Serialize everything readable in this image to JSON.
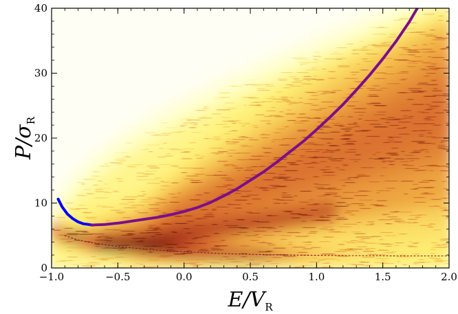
{
  "chart_data": {
    "type": "heatmap",
    "title": "",
    "xlabel": "E/V",
    "xlabel_subscript": "R",
    "ylabel": "P/σ",
    "ylabel_subscript": "R",
    "xlim": [
      -1.0,
      2.0
    ],
    "ylim": [
      0,
      40
    ],
    "x_ticks": [
      -1.0,
      -0.5,
      0.0,
      0.5,
      1.0,
      1.5,
      2.0
    ],
    "x_tick_labels": [
      "−1.0",
      "−0.5",
      "0.0",
      "0.5",
      "1.0",
      "1.5",
      "2.0"
    ],
    "y_ticks": [
      0,
      10,
      20,
      30,
      40
    ],
    "y_tick_labels": [
      "0",
      "10",
      "20",
      "30",
      "40"
    ],
    "grid": false,
    "colormap": [
      "#fffef4",
      "#ffffc4",
      "#fff070",
      "#f2b140",
      "#d86a28",
      "#a52a14",
      "#5a0e08"
    ],
    "series": [
      {
        "style": "solid",
        "color": "#0000ff",
        "x": [
          -0.95,
          -0.92,
          -0.88,
          -0.84,
          -0.8,
          -0.76,
          -0.72,
          -0.69
        ],
        "y": [
          10.6,
          9.4,
          8.3,
          7.6,
          7.1,
          6.8,
          6.7,
          6.6
        ]
      },
      {
        "style": "solid",
        "color": "#7b0f8a",
        "x": [
          -0.7,
          -0.6,
          -0.5,
          -0.4,
          -0.3,
          -0.2,
          -0.1,
          0.0,
          0.1,
          0.2,
          0.3,
          0.4,
          0.5,
          0.6,
          0.7,
          0.8,
          0.9,
          1.0,
          1.1,
          1.2,
          1.3,
          1.4,
          1.5,
          1.6,
          1.7,
          1.76
        ],
        "y": [
          6.6,
          6.7,
          6.9,
          7.2,
          7.5,
          7.8,
          8.2,
          8.7,
          9.3,
          10.1,
          11.1,
          12.2,
          13.5,
          14.8,
          16.3,
          17.9,
          19.5,
          21.3,
          23.2,
          25.2,
          27.4,
          29.7,
          32.2,
          34.9,
          37.9,
          40.0
        ]
      },
      {
        "style": "dotted",
        "color": "#8a1030",
        "x": [
          -0.9,
          -0.8,
          -0.7,
          -0.6,
          -0.5,
          -0.4,
          -0.3,
          -0.2,
          -0.1,
          0.0,
          0.2,
          0.4,
          0.6,
          0.8,
          1.0,
          1.2,
          1.4,
          1.6,
          1.8,
          2.0
        ],
        "y": [
          5.0,
          4.3,
          3.9,
          3.6,
          3.3,
          3.1,
          2.9,
          2.75,
          2.6,
          2.5,
          2.3,
          2.15,
          2.05,
          2.0,
          1.95,
          1.9,
          1.9,
          1.85,
          1.85,
          1.85
        ]
      }
    ]
  }
}
